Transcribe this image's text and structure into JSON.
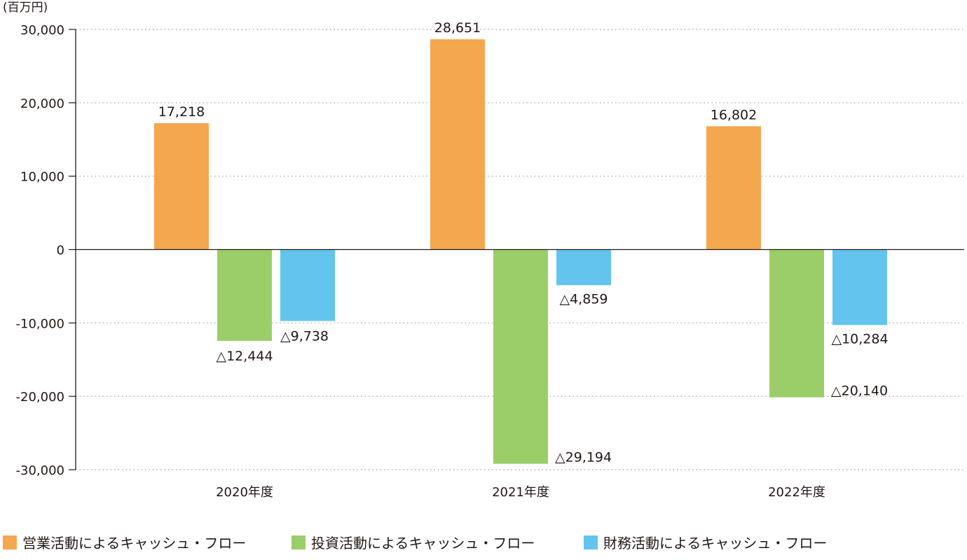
{
  "chart_data": {
    "type": "bar",
    "unit_label": "(百万円)",
    "categories": [
      "2020年度",
      "2021年度",
      "2022年度"
    ],
    "series": [
      {
        "name": "営業活動によるキャッシュ・フロー",
        "color": "#F4A74E",
        "values": [
          17218,
          28651,
          16802
        ],
        "labels": [
          "17,218",
          "28,651",
          "16,802"
        ]
      },
      {
        "name": "投資活動によるキャッシュ・フロー",
        "color": "#9BCE69",
        "values": [
          -12444,
          -29194,
          -20140
        ],
        "labels": [
          "△12,444",
          "△29,194",
          "△20,140"
        ]
      },
      {
        "name": "財務活動によるキャッシュ・フロー",
        "color": "#63C5EE",
        "values": [
          -9738,
          -4859,
          -10284
        ],
        "labels": [
          "△9,738",
          "△4,859",
          "△10,284"
        ]
      }
    ],
    "ylim": [
      -30000,
      30000
    ],
    "yticks": [
      30000,
      20000,
      10000,
      0,
      -10000,
      -20000,
      -30000
    ],
    "ytick_labels": [
      "30,000",
      "20,000",
      "10,000",
      "0",
      "-10,000",
      "-20,000",
      "-30,000"
    ],
    "grid": true,
    "legend_position": "bottom"
  }
}
